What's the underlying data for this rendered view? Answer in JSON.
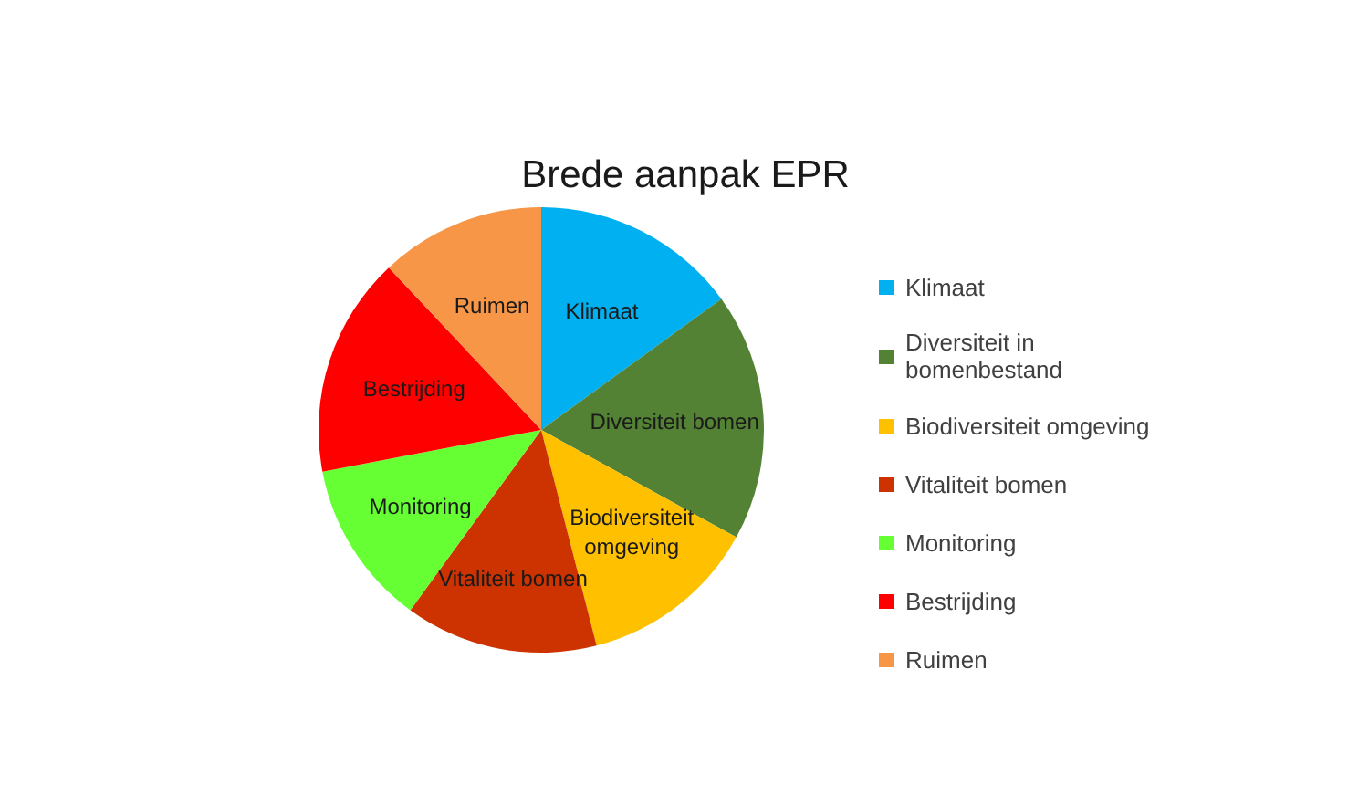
{
  "chart_data": {
    "type": "pie",
    "title": "Brede aanpak EPR",
    "categories": [
      "Klimaat",
      "Diversiteit in bomenbestand",
      "Biodiversiteit omgeving",
      "Vitaliteit bomen",
      "Monitoring",
      "Bestrijding",
      "Ruimen"
    ],
    "values": [
      15,
      18,
      13,
      14,
      12,
      16,
      12
    ],
    "colors": [
      "#00b0f0",
      "#548235",
      "#ffc000",
      "#cc3300",
      "#66ff33",
      "#ff0000",
      "#f79646"
    ],
    "value_labels": [
      "Klimaat",
      "Diversiteit bomen",
      "Biodiversiteit omgeving",
      "Vitaliteit bomen",
      "Monitoring",
      "Bestrijding",
      "Ruimen"
    ],
    "legend": "right"
  }
}
